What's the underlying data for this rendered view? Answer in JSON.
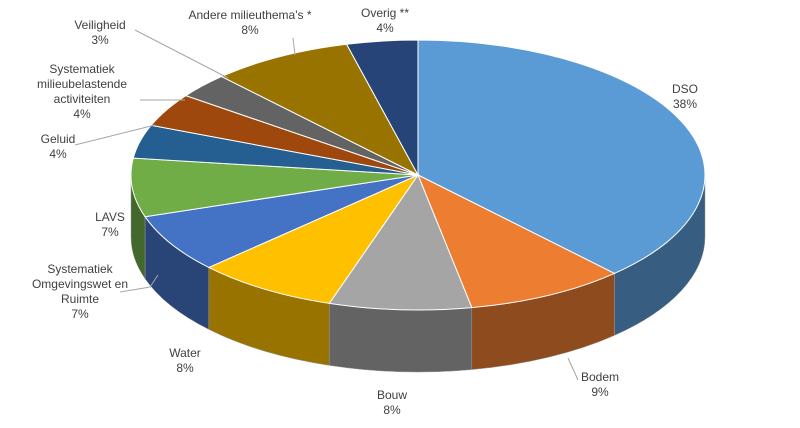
{
  "chart_data": {
    "type": "pie",
    "categories": [
      "DSO",
      "Bodem",
      "Bouw",
      "Water",
      "Systematiek Omgevingswet en Ruimte",
      "LAVS",
      "Geluid",
      "Systematiek milieubelastende activiteiten",
      "Veiligheid",
      "Andere milieuthema's *",
      "Overig **"
    ],
    "values": [
      38,
      9,
      8,
      8,
      7,
      7,
      4,
      4,
      3,
      8,
      4
    ],
    "value_labels": [
      "38%",
      "9%",
      "8%",
      "8%",
      "7%",
      "7%",
      "4%",
      "4%",
      "3%",
      "8%",
      "4%"
    ],
    "colors": [
      "#5b9bd5",
      "#ed7d31",
      "#a5a5a5",
      "#ffc000",
      "#4472c4",
      "#70ad47",
      "#255e91",
      "#9e480e",
      "#636363",
      "#997300",
      "#264478"
    ]
  }
}
